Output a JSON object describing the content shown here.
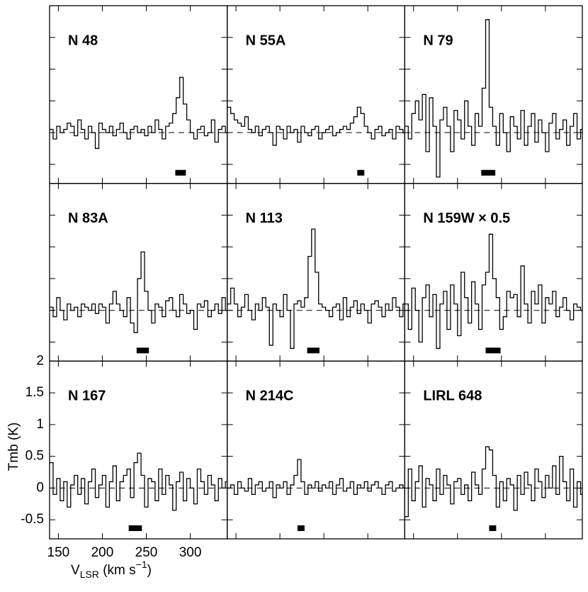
{
  "axes": {
    "xlim": [
      140,
      342
    ],
    "ylim": [
      -0.8,
      2.0
    ],
    "xticks": [
      150,
      200,
      250,
      300
    ],
    "yticks": [
      -0.5,
      0,
      0.5,
      1,
      1.5,
      2
    ],
    "xlabel": [
      "V",
      "LSR",
      " (km s",
      "−1",
      ")"
    ],
    "ylabel": "Tmb (K)"
  },
  "chart_data": [
    {
      "type": "step",
      "title": "N 48",
      "bar": [
        283,
        295
      ],
      "x": [
        142,
        146,
        150,
        154,
        158,
        162,
        166,
        170,
        174,
        178,
        182,
        186,
        190,
        194,
        198,
        202,
        206,
        210,
        214,
        218,
        222,
        226,
        230,
        234,
        238,
        242,
        246,
        250,
        254,
        258,
        262,
        266,
        270,
        274,
        278,
        282,
        286,
        290,
        294,
        298,
        302,
        306,
        310,
        314,
        318,
        322,
        326,
        330,
        334,
        338,
        342
      ],
      "values": [
        0.05,
        -0.1,
        0.1,
        0,
        0.05,
        0.15,
        0.1,
        -0.05,
        0.2,
        0.05,
        -0.1,
        0.1,
        0,
        -0.25,
        0.15,
        0.05,
        0,
        0.1,
        -0.05,
        0.05,
        0.15,
        0,
        -0.1,
        0.05,
        0.1,
        0,
        0.05,
        -0.05,
        0.1,
        0,
        0.2,
        0.05,
        -0.1,
        0.1,
        0.15,
        0.3,
        0.55,
        0.87,
        0.45,
        0.2,
        0,
        -0.1,
        0.05,
        0.1,
        -0.05,
        0,
        0.2,
        -0.15,
        0.05,
        0.1,
        0
      ]
    },
    {
      "type": "step",
      "title": "N 55A",
      "bar": [
        288,
        296
      ],
      "x": [
        142,
        146,
        150,
        154,
        158,
        162,
        166,
        170,
        174,
        178,
        182,
        186,
        190,
        194,
        198,
        202,
        206,
        210,
        214,
        218,
        222,
        226,
        230,
        234,
        238,
        242,
        246,
        250,
        254,
        258,
        262,
        266,
        270,
        274,
        278,
        282,
        286,
        290,
        294,
        298,
        302,
        306,
        310,
        314,
        318,
        322,
        326,
        330,
        334,
        338,
        342
      ],
      "values": [
        0.4,
        0.3,
        0.2,
        0.15,
        0.1,
        0.25,
        0.05,
        0,
        0.1,
        -0.05,
        0.05,
        0.1,
        0,
        -0.2,
        0.1,
        0.05,
        -0.1,
        0.1,
        0,
        0.05,
        -0.15,
        0.1,
        0,
        -0.05,
        0.05,
        0.1,
        -0.1,
        0,
        0.05,
        0.1,
        -0.05,
        0,
        0.05,
        0.1,
        0.05,
        0.15,
        0.25,
        0.4,
        0.3,
        0.1,
        0,
        -0.1,
        0.05,
        0.1,
        -0.05,
        0,
        0.05,
        -0.1,
        0.1,
        0.05,
        0
      ]
    },
    {
      "type": "step",
      "title": "N 79",
      "bar": [
        227,
        243
      ],
      "x": [
        142,
        146,
        150,
        154,
        158,
        162,
        166,
        170,
        174,
        178,
        182,
        186,
        190,
        194,
        198,
        202,
        206,
        210,
        214,
        218,
        222,
        226,
        230,
        234,
        238,
        242,
        246,
        250,
        254,
        258,
        262,
        266,
        270,
        274,
        278,
        282,
        286,
        290,
        294,
        298,
        302,
        306,
        310,
        314,
        318,
        322,
        326,
        330,
        334,
        338,
        342
      ],
      "values": [
        0.1,
        -0.1,
        0.3,
        0.5,
        0.2,
        0.6,
        -0.3,
        0.55,
        0.1,
        -0.7,
        0.2,
        0.4,
        0.1,
        -0.3,
        0.35,
        0.2,
        -0.1,
        0.5,
        0.1,
        -0.2,
        0.3,
        0.1,
        0.7,
        1.78,
        0.4,
        0.1,
        -0.2,
        0.3,
        0,
        -0.3,
        0.25,
        0.1,
        -0.1,
        0.35,
        -0.2,
        0.1,
        0.3,
        -0.15,
        0.2,
        0,
        -0.3,
        0.15,
        0.3,
        -0.1,
        0.05,
        0.2,
        -0.2,
        0.1,
        0.3,
        -0.1,
        0.05
      ]
    },
    {
      "type": "step",
      "title": "N 83A",
      "bar": [
        239,
        253
      ],
      "x": [
        142,
        146,
        150,
        154,
        158,
        162,
        166,
        170,
        174,
        178,
        182,
        186,
        190,
        194,
        198,
        202,
        206,
        210,
        214,
        218,
        222,
        226,
        230,
        234,
        238,
        242,
        246,
        250,
        254,
        258,
        262,
        266,
        270,
        274,
        278,
        282,
        286,
        290,
        294,
        298,
        302,
        306,
        310,
        314,
        318,
        322,
        326,
        330,
        334,
        338,
        342
      ],
      "values": [
        0.05,
        -0.1,
        0.2,
        0,
        -0.15,
        0.1,
        0,
        0.05,
        -0.1,
        0.1,
        0.05,
        0,
        0.1,
        -0.05,
        0.1,
        0.05,
        -0.2,
        0.1,
        0.3,
        0.1,
        0,
        -0.1,
        0.2,
        -0.2,
        -0.35,
        0.5,
        0.92,
        0.3,
        0,
        -0.2,
        0.1,
        0.05,
        -0.1,
        0.15,
        0.2,
        0,
        -0.1,
        0.25,
        0.1,
        -0.05,
        0,
        -0.3,
        0.1,
        0.05,
        0.15,
        -0.1,
        0,
        0.1,
        -0.05,
        0.2,
        0
      ]
    },
    {
      "type": "step",
      "title": "N 113",
      "bar": [
        231,
        245
      ],
      "x": [
        142,
        146,
        150,
        154,
        158,
        162,
        166,
        170,
        174,
        178,
        182,
        186,
        190,
        194,
        198,
        202,
        206,
        210,
        214,
        218,
        222,
        226,
        230,
        234,
        238,
        242,
        246,
        250,
        254,
        258,
        262,
        266,
        270,
        274,
        278,
        282,
        286,
        290,
        294,
        298,
        302,
        306,
        310,
        314,
        318,
        322,
        326,
        330,
        334,
        338,
        342
      ],
      "values": [
        0.1,
        0.35,
        0.1,
        -0.1,
        0.05,
        0.25,
        0,
        -0.15,
        0.1,
        0,
        0.2,
        0.05,
        -0.55,
        0.1,
        0,
        -0.1,
        0.25,
        0,
        -0.6,
        0.1,
        0.15,
        0.05,
        0.2,
        0.85,
        1.28,
        0.6,
        0.1,
        0.05,
        0,
        -0.1,
        0.05,
        0.1,
        -0.15,
        0.2,
        -0.1,
        0.05,
        0.15,
        -0.05,
        0.1,
        0,
        -0.2,
        0.1,
        0.15,
        0.05,
        -0.1,
        0.1,
        0,
        0.2,
        0.05,
        -0.1,
        0.1
      ]
    },
    {
      "type": "step",
      "title": "N 159W × 0.5",
      "bar": [
        232,
        249
      ],
      "x": [
        142,
        146,
        150,
        154,
        158,
        162,
        166,
        170,
        174,
        178,
        182,
        186,
        190,
        194,
        198,
        202,
        206,
        210,
        214,
        218,
        222,
        226,
        230,
        234,
        238,
        242,
        246,
        250,
        254,
        258,
        262,
        266,
        270,
        274,
        278,
        282,
        286,
        290,
        294,
        298,
        302,
        306,
        310,
        314,
        318,
        322,
        326,
        330,
        334,
        338,
        342
      ],
      "values": [
        0.1,
        -0.3,
        0.35,
        0,
        -0.5,
        0.2,
        0.4,
        -0.1,
        0.25,
        -0.6,
        0.1,
        0.3,
        -0.3,
        0.4,
        0.1,
        -0.4,
        0.6,
        0.2,
        -0.2,
        0.45,
        0.1,
        -0.3,
        0.4,
        0.6,
        1.2,
        0.5,
        0.2,
        -0.3,
        -0.1,
        0.3,
        0.2,
        0.25,
        -0.1,
        0.7,
        0.1,
        -0.2,
        0.3,
        0.1,
        0.4,
        -0.2,
        0.2,
        0.1,
        0.3,
        -0.1,
        0.05,
        0.2,
        0,
        -0.15,
        0.1,
        0.05,
        0
      ]
    },
    {
      "type": "step",
      "title": "N 167",
      "bar": [
        230,
        245
      ],
      "x": [
        142,
        146,
        150,
        154,
        158,
        162,
        166,
        170,
        174,
        178,
        182,
        186,
        190,
        194,
        198,
        202,
        206,
        210,
        214,
        218,
        222,
        226,
        230,
        234,
        238,
        242,
        246,
        250,
        254,
        258,
        262,
        266,
        270,
        274,
        278,
        282,
        286,
        290,
        294,
        298,
        302,
        306,
        310,
        314,
        318,
        322,
        326,
        330,
        334,
        338,
        342
      ],
      "values": [
        0.4,
        -0.1,
        0.15,
        -0.2,
        0.1,
        -0.3,
        0.05,
        0.2,
        -0.1,
        0.15,
        -0.25,
        0.1,
        0.3,
        -0.15,
        0.05,
        0.2,
        -0.3,
        0.1,
        0.35,
        -0.2,
        0.1,
        0.2,
        0.3,
        -0.15,
        0.4,
        0.55,
        0.2,
        -0.3,
        0.15,
        0.1,
        -0.2,
        0.3,
        -0.1,
        0.2,
        0.05,
        -0.35,
        0.1,
        0.25,
        -0.2,
        0.15,
        0,
        -0.25,
        0.3,
        0.1,
        -0.1,
        0.2,
        0.05,
        -0.2,
        0.15,
        0,
        0.1
      ]
    },
    {
      "type": "step",
      "title": "N 214C",
      "bar": [
        220,
        228
      ],
      "x": [
        142,
        146,
        150,
        154,
        158,
        162,
        166,
        170,
        174,
        178,
        182,
        186,
        190,
        194,
        198,
        202,
        206,
        210,
        214,
        218,
        222,
        226,
        230,
        234,
        238,
        242,
        246,
        250,
        254,
        258,
        262,
        266,
        270,
        274,
        278,
        282,
        286,
        290,
        294,
        298,
        302,
        306,
        310,
        314,
        318,
        322,
        326,
        330,
        334,
        338,
        342
      ],
      "values": [
        0,
        0.05,
        -0.1,
        0.1,
        0,
        -0.05,
        0.15,
        -0.1,
        0.05,
        0.1,
        -0.05,
        0,
        0.1,
        -0.15,
        0.05,
        0,
        0.1,
        -0.1,
        0.05,
        0.2,
        0.45,
        0.1,
        -0.1,
        0.05,
        0,
        0.1,
        -0.05,
        0.05,
        0,
        0.1,
        -0.1,
        0.05,
        0.15,
        -0.05,
        0,
        0.1,
        -0.1,
        0.05,
        0,
        0.1,
        -0.05,
        0.05,
        0.1,
        0,
        -0.1,
        0.05,
        0.1,
        -0.05,
        0,
        0.05,
        0
      ]
    },
    {
      "type": "step",
      "title": "LIRL 648",
      "bar": [
        236,
        244
      ],
      "x": [
        142,
        146,
        150,
        154,
        158,
        162,
        166,
        170,
        174,
        178,
        182,
        186,
        190,
        194,
        198,
        202,
        206,
        210,
        214,
        218,
        222,
        226,
        230,
        234,
        238,
        242,
        246,
        250,
        254,
        258,
        262,
        266,
        270,
        274,
        278,
        282,
        286,
        290,
        294,
        298,
        302,
        306,
        310,
        314,
        318,
        322,
        326,
        330,
        334,
        338,
        342
      ],
      "values": [
        -0.45,
        0.3,
        -0.2,
        0.1,
        0.35,
        -0.3,
        0.15,
        0.05,
        -0.2,
        0.3,
        -0.1,
        0.2,
        0.05,
        -0.25,
        0.1,
        0.15,
        -0.1,
        0.05,
        -0.2,
        0.25,
        0.05,
        -0.1,
        0.3,
        0.65,
        0.6,
        0.2,
        -0.3,
        0.1,
        -0.2,
        0.15,
        0.05,
        -0.35,
        0.2,
        -0.1,
        0.25,
        0.05,
        -0.2,
        0.3,
        0.1,
        -0.15,
        0.2,
        0,
        0.35,
        -0.1,
        0.5,
        0.1,
        -0.2,
        0.3,
        -0.3,
        0.1,
        -0.1
      ]
    }
  ]
}
